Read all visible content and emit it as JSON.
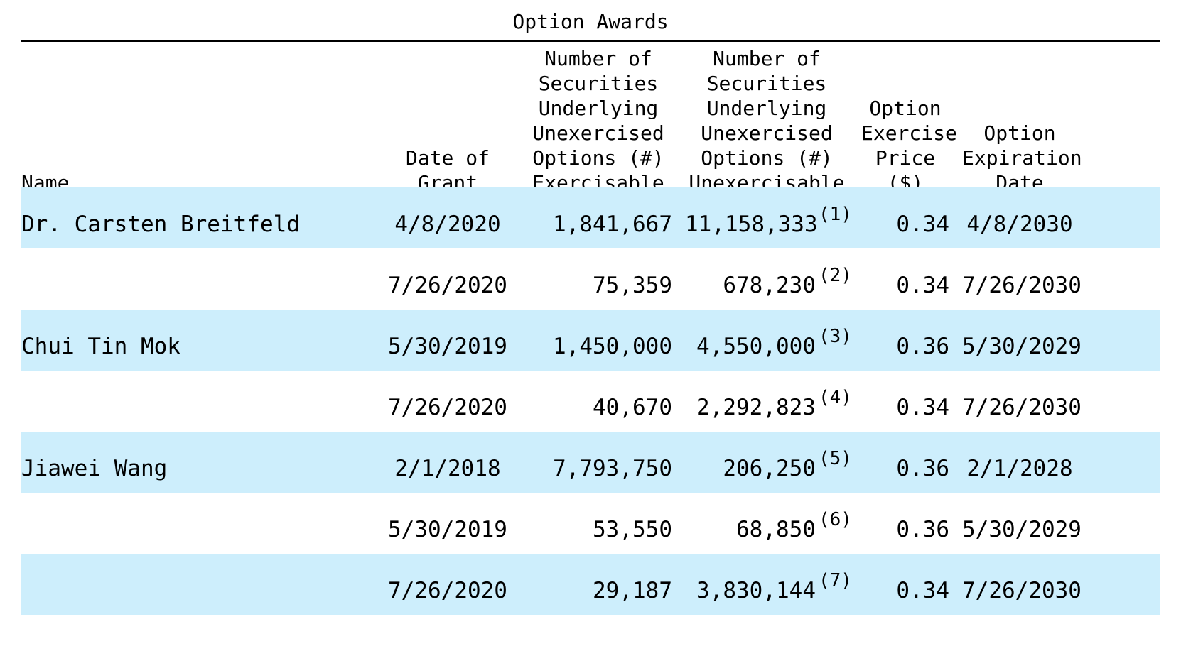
{
  "caption": "Option Awards",
  "headers": {
    "name": "Name",
    "date_of_grant": "Date of\nGrant",
    "exercisable": "Number of\nSecurities\nUnderlying\nUnexercised\nOptions (#)\nExercisable",
    "unexercisable": "Number of\nSecurities\nUnderlying\nUnexercised\nOptions (#)\nUnexercisable",
    "price": "Option\nExercise\nPrice\n($)",
    "expiration": "Option\nExpiration\nDate"
  },
  "rows": [
    {
      "name": "Dr.   Carsten Breitfeld",
      "date": "4/8/2020",
      "exercisable": "1,841,667",
      "unexercisable": "11,158,333",
      "note": "(1)",
      "price": "0.34",
      "expiration": "4/8/2030"
    },
    {
      "name": "",
      "date": "7/26/2020",
      "exercisable": "75,359",
      "unexercisable": "678,230",
      "note": "(2)",
      "price": "0.34",
      "expiration": "7/26/2030"
    },
    {
      "name": "Chui Tin Mok",
      "date": "5/30/2019",
      "exercisable": "1,450,000",
      "unexercisable": "4,550,000",
      "note": "(3)",
      "price": "0.36",
      "expiration": "5/30/2029"
    },
    {
      "name": "",
      "date": "7/26/2020",
      "exercisable": "40,670",
      "unexercisable": "2,292,823",
      "note": "(4)",
      "price": "0.34",
      "expiration": "7/26/2030"
    },
    {
      "name": "Jiawei Wang",
      "date": "2/1/2018",
      "exercisable": "7,793,750",
      "unexercisable": "206,250",
      "note": "(5)",
      "price": "0.36",
      "expiration": "2/1/2028"
    },
    {
      "name": "",
      "date": "5/30/2019",
      "exercisable": "53,550",
      "unexercisable": "68,850",
      "note": "(6)",
      "price": "0.36",
      "expiration": "5/30/2029"
    },
    {
      "name": "",
      "date": "7/26/2020",
      "exercisable": "29,187",
      "unexercisable": "3,830,144",
      "note": "(7)",
      "price": "0.34",
      "expiration": "7/26/2030"
    }
  ],
  "colors": {
    "row_shade": "#cdeefc",
    "rule": "#000000"
  }
}
